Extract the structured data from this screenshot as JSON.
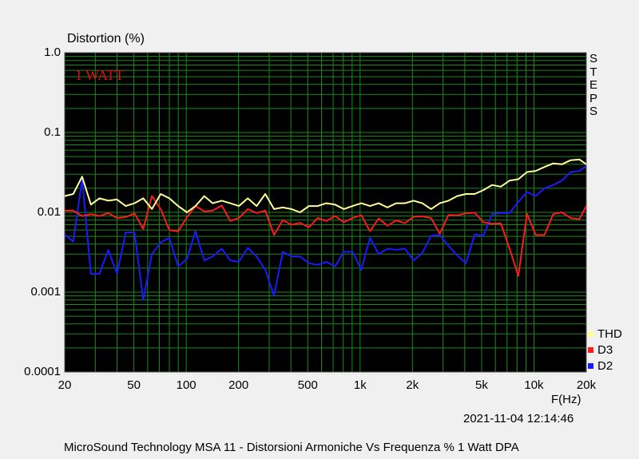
{
  "chart_data": {
    "type": "line",
    "ylabel": "Distortion (%)",
    "xlabel": "F(Hz)",
    "yscale": "log",
    "xscale": "log",
    "ylim": [
      0.0001,
      1.0
    ],
    "xlim": [
      20,
      20000
    ],
    "y_tick_labels": [
      "1.0",
      "0.1",
      "0.01",
      "0.001",
      "0.0001"
    ],
    "y_tick_values": [
      1.0,
      0.1,
      0.01,
      0.001,
      0.0001
    ],
    "x_tick_labels": [
      "20",
      "50",
      "100",
      "200",
      "500",
      "1k",
      "2k",
      "5k",
      "10k",
      "20k"
    ],
    "x_tick_values": [
      20,
      50,
      100,
      200,
      500,
      1000,
      2000,
      5000,
      10000,
      20000
    ],
    "annotation": "1 WATT",
    "grid": true,
    "legend_position": "bottom-right",
    "background": "#000000",
    "grid_color": "#1a8a1a",
    "x": [
      20,
      22.4,
      25.2,
      28.3,
      31.7,
      35.6,
      40,
      44.9,
      50.4,
      56.6,
      63.5,
      71.3,
      80,
      89.8,
      101,
      113,
      127,
      142,
      160,
      179,
      201,
      226,
      254,
      285,
      320,
      359,
      403,
      452,
      508,
      570,
      640,
      718,
      806,
      905,
      1016,
      1140,
      1280,
      1436,
      1612,
      1810,
      2032,
      2280,
      2560,
      2873,
      3225,
      3620,
      4063,
      4561,
      5120,
      5747,
      6451,
      7241,
      8127,
      9123,
      10240,
      11494,
      12902,
      14482,
      16255,
      18246,
      20000
    ],
    "series": [
      {
        "name": "THD",
        "color": "#ffff99",
        "values": [
          0.016,
          0.017,
          0.028,
          0.0125,
          0.015,
          0.014,
          0.0145,
          0.012,
          0.013,
          0.015,
          0.011,
          0.017,
          0.015,
          0.012,
          0.01,
          0.012,
          0.016,
          0.013,
          0.014,
          0.013,
          0.012,
          0.015,
          0.012,
          0.017,
          0.011,
          0.0115,
          0.011,
          0.01,
          0.012,
          0.012,
          0.013,
          0.0125,
          0.011,
          0.012,
          0.013,
          0.012,
          0.013,
          0.0115,
          0.013,
          0.013,
          0.014,
          0.013,
          0.011,
          0.013,
          0.014,
          0.016,
          0.017,
          0.017,
          0.019,
          0.022,
          0.021,
          0.025,
          0.026,
          0.032,
          0.033,
          0.037,
          0.041,
          0.04,
          0.045,
          0.046,
          0.04
        ]
      },
      {
        "name": "D3",
        "color": "#ff1a1a",
        "values": [
          0.0105,
          0.0105,
          0.009,
          0.0095,
          0.009,
          0.0098,
          0.0085,
          0.0087,
          0.0097,
          0.0062,
          0.016,
          0.011,
          0.006,
          0.0058,
          0.0087,
          0.012,
          0.0103,
          0.0105,
          0.0122,
          0.0078,
          0.0085,
          0.011,
          0.0098,
          0.0105,
          0.0052,
          0.008,
          0.007,
          0.0074,
          0.0065,
          0.0085,
          0.0078,
          0.009,
          0.0075,
          0.0085,
          0.0092,
          0.0058,
          0.0084,
          0.0068,
          0.0079,
          0.0073,
          0.0088,
          0.0089,
          0.0085,
          0.0054,
          0.0093,
          0.0092,
          0.0097,
          0.0099,
          0.0075,
          0.0072,
          0.0073,
          0.0035,
          0.0016,
          0.0096,
          0.0052,
          0.0052,
          0.0095,
          0.01,
          0.0085,
          0.0082,
          0.012
        ]
      },
      {
        "name": "D2",
        "color": "#1a1aff",
        "values": [
          0.0053,
          0.0043,
          0.026,
          0.0017,
          0.0017,
          0.0034,
          0.0017,
          0.0056,
          0.0056,
          0.0008,
          0.003,
          0.0042,
          0.0048,
          0.0021,
          0.0026,
          0.0058,
          0.0025,
          0.0028,
          0.0035,
          0.0025,
          0.0024,
          0.0036,
          0.0028,
          0.0019,
          0.0009,
          0.0032,
          0.0028,
          0.0028,
          0.0023,
          0.0022,
          0.0024,
          0.0021,
          0.0032,
          0.0032,
          0.0019,
          0.0048,
          0.003,
          0.0035,
          0.0034,
          0.0035,
          0.0025,
          0.0031,
          0.0051,
          0.0052,
          0.0038,
          0.0029,
          0.0023,
          0.0053,
          0.0051,
          0.0095,
          0.0098,
          0.0098,
          0.0135,
          0.018,
          0.016,
          0.02,
          0.022,
          0.025,
          0.032,
          0.033,
          0.038
        ]
      }
    ],
    "legend": [
      "THD",
      "D3",
      "D2"
    ]
  },
  "side_label": "STEPS",
  "timestamp": "2021-11-04 12:14:46",
  "footer": "MicroSound Technology MSA 11 - Distorsioni Armoniche Vs Frequenza % 1 Watt      DPA"
}
